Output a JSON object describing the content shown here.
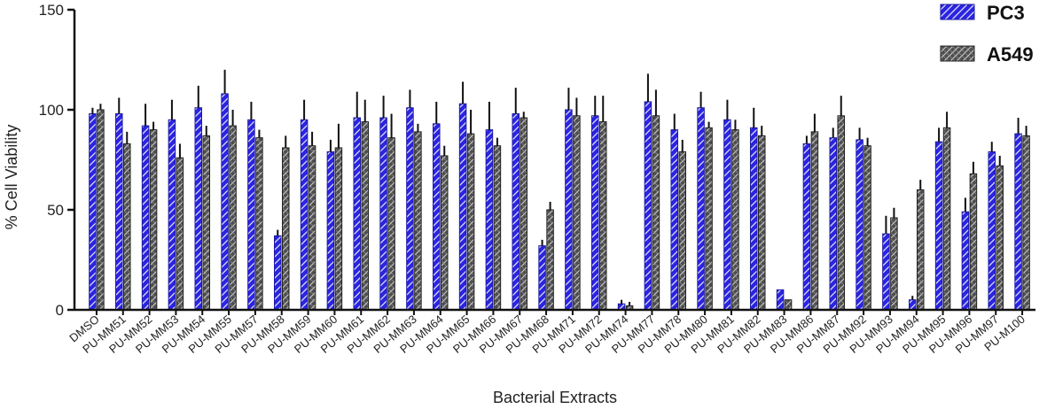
{
  "chart_data": {
    "type": "bar",
    "title": "",
    "xlabel": "Bacterial Extracts",
    "ylabel": "% Cell Viability",
    "ylim": [
      0,
      150
    ],
    "yticks": [
      0,
      50,
      100,
      150
    ],
    "grid": false,
    "legend_position": "top-right",
    "categories": [
      "DMSO",
      "PU-MM51",
      "PU-MM52",
      "PU-MM53",
      "PU-MM54",
      "PU-MM55",
      "PU-MM57",
      "PU-MM58",
      "PU-MM59",
      "PU-MM60",
      "PU-MM61",
      "PU-MM62",
      "PU-MM63",
      "PU-MM64",
      "PU-MM65",
      "PU-MM66",
      "PU-MM67",
      "PU-MM68",
      "PU-MM71",
      "PU-MM72",
      "PU-MM74",
      "PU-MM77",
      "PU-MM78",
      "PU-MM80",
      "PU-MM81",
      "PU-MM82",
      "PU-MM83",
      "PU-MM86",
      "PU-MM87",
      "PU-MM92",
      "PU-MM93",
      "PU-MM94",
      "PU-MM95",
      "PU-MM96",
      "PU-MM97",
      "PU-M100"
    ],
    "series": [
      {
        "name": "PC3",
        "color": "#2b24e0",
        "values": [
          98,
          98,
          92,
          95,
          101,
          108,
          95,
          37,
          95,
          79,
          96,
          96,
          101,
          93,
          103,
          90,
          98,
          32,
          100,
          97,
          3,
          104,
          90,
          101,
          95,
          91,
          10,
          83,
          86,
          85,
          38,
          5,
          84,
          49,
          79,
          88
        ],
        "errors": [
          3,
          8,
          11,
          10,
          11,
          12,
          9,
          3,
          10,
          6,
          13,
          11,
          9,
          11,
          11,
          14,
          13,
          3,
          11,
          10,
          2,
          14,
          8,
          8,
          10,
          10,
          0,
          4,
          5,
          6,
          9,
          2,
          7,
          7,
          5,
          8
        ]
      },
      {
        "name": "A549",
        "color": "#5a5a5a",
        "values": [
          100,
          83,
          90,
          76,
          87,
          92,
          86,
          81,
          82,
          81,
          94,
          86,
          89,
          77,
          88,
          82,
          96,
          50,
          97,
          94,
          2,
          97,
          79,
          91,
          90,
          87,
          5,
          89,
          97,
          82,
          46,
          60,
          91,
          68,
          72,
          87
        ],
        "errors": [
          3,
          6,
          4,
          7,
          5,
          8,
          4,
          6,
          7,
          12,
          11,
          12,
          4,
          5,
          12,
          4,
          3,
          4,
          9,
          13,
          2,
          13,
          6,
          3,
          5,
          5,
          0,
          9,
          10,
          4,
          5,
          5,
          8,
          6,
          5,
          5
        ]
      }
    ]
  }
}
